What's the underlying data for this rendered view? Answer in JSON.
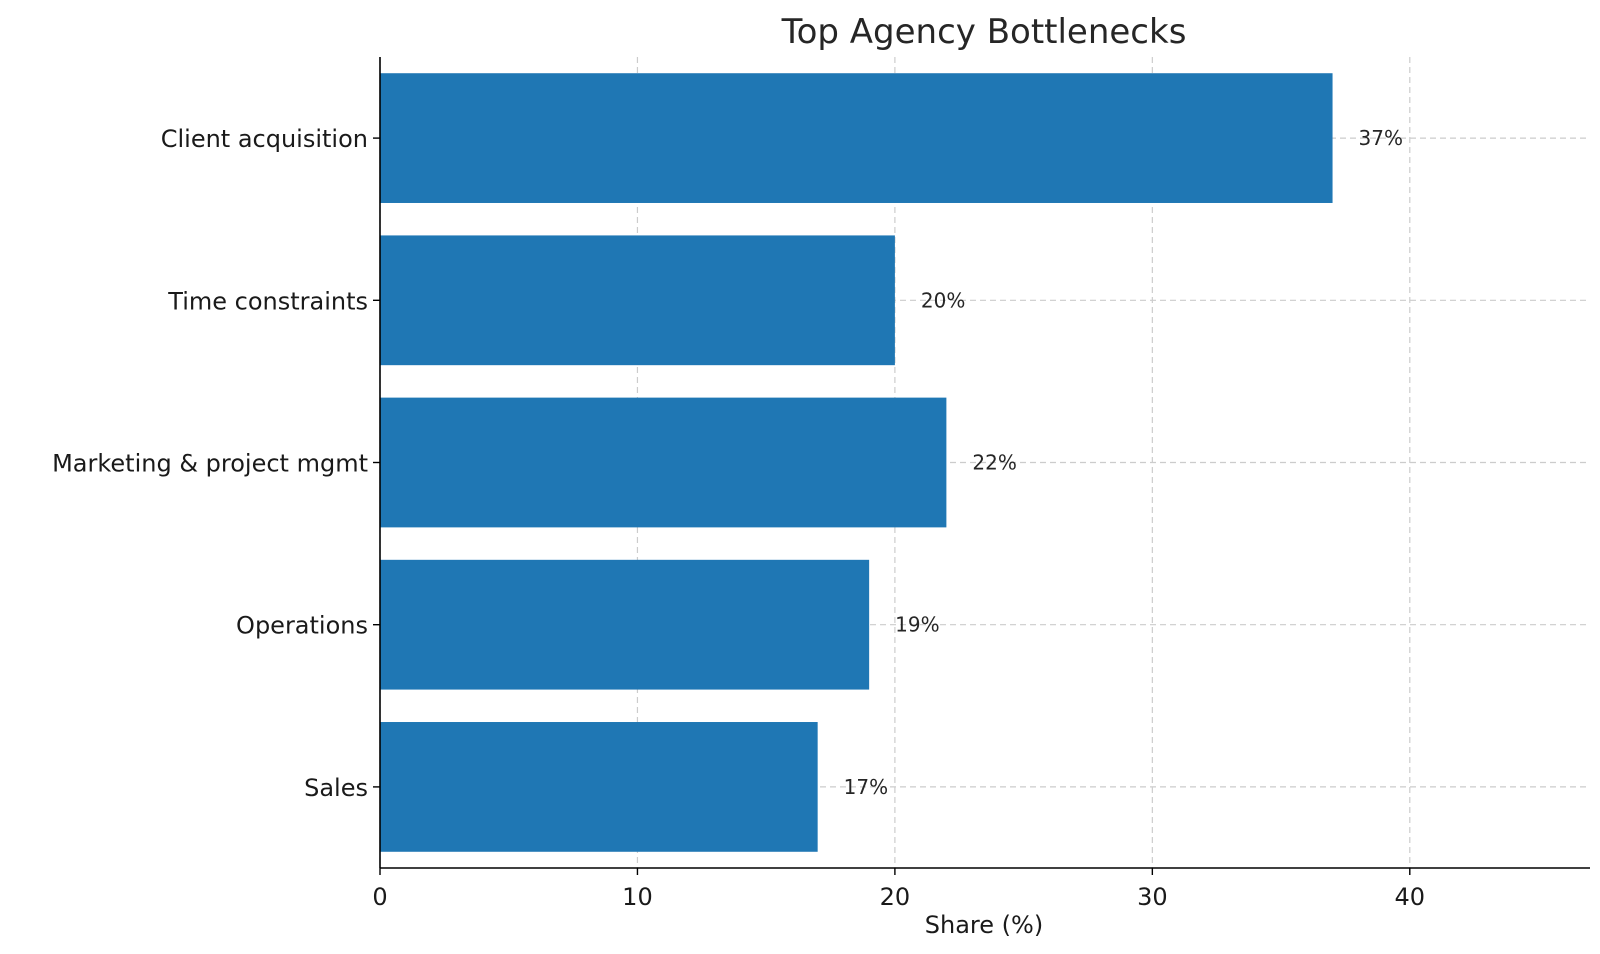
{
  "chart_data": {
    "type": "bar",
    "orientation": "horizontal",
    "title": "Top Agency Bottlenecks",
    "xlabel": "Share (%)",
    "ylabel": "",
    "categories": [
      "Client acquisition",
      "Time constraints",
      "Marketing & project mgmt",
      "Operations",
      "Sales"
    ],
    "values": [
      37,
      20,
      22,
      19,
      17
    ],
    "data_labels": [
      "37%",
      "20%",
      "22%",
      "19%",
      "17%"
    ],
    "xlim": [
      0,
      47
    ],
    "xticks": [
      0,
      10,
      20,
      30,
      40
    ],
    "grid": true,
    "bar_color": "#1f77b4"
  }
}
